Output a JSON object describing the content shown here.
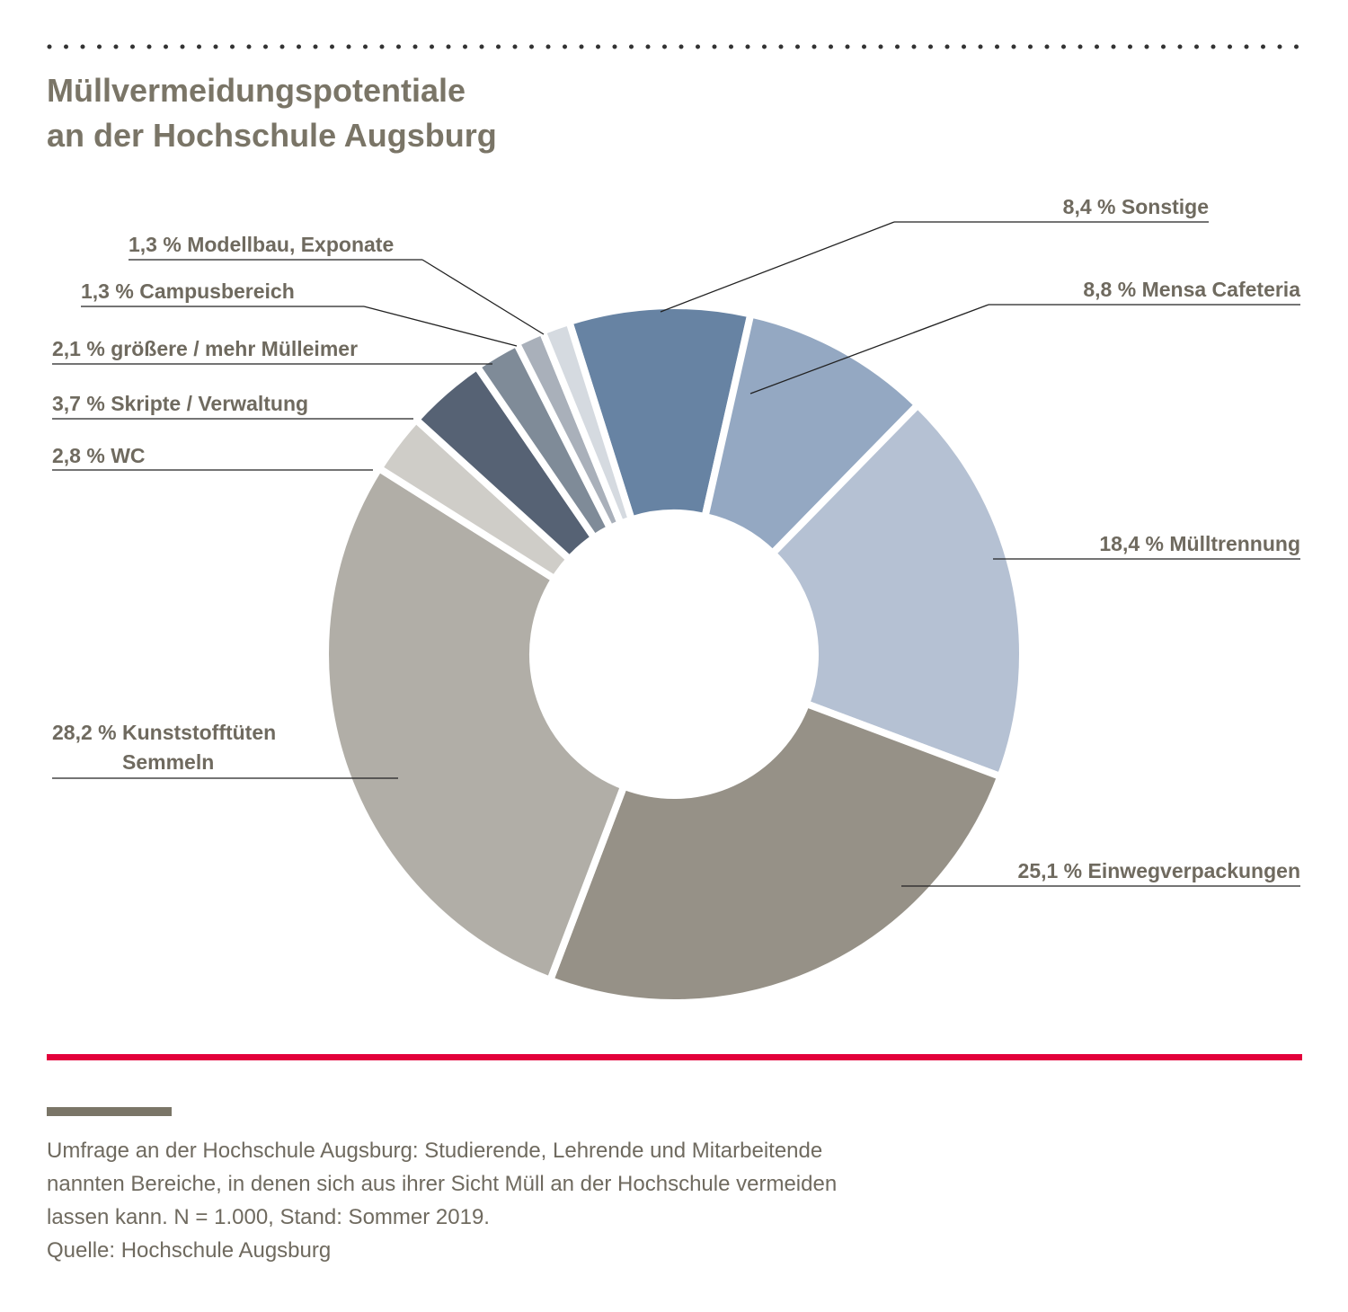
{
  "chart_data": {
    "type": "donut",
    "title": "Müllvermeidungspotentiale\nan der Hochschule Augsburg",
    "categories": [
      "Sonstige",
      "Mensa Cafeteria",
      "Mülltrennung",
      "Einwegverpackungen",
      "Kunststofftüten\nSemmeln",
      "WC",
      "Skripte / Verwaltung",
      "größere / mehr Mülleimer",
      "Campusbereich",
      "Modellbau, Exponate"
    ],
    "values": [
      8.4,
      8.8,
      18.4,
      25.1,
      28.2,
      2.8,
      3.7,
      2.1,
      1.3,
      1.3
    ],
    "value_labels": [
      "8,4 %",
      "8,8 %",
      "18,4 %",
      "25,1 %",
      "28,2 %",
      "2,8 %",
      "3,7 %",
      "2,1 %",
      "1,3 %",
      "1,3 %"
    ],
    "colors": [
      "#6783a3",
      "#94a8c2",
      "#b5c1d3",
      "#969187",
      "#b1aea7",
      "#cfcdc8",
      "#566274",
      "#7f8b98",
      "#a9b0ba",
      "#d5dae0"
    ],
    "notes": [
      "Umfrage an der Hochschule Augsburg: Studierende, Lehrende und Mitarbeitende",
      "nannten Bereiche, in denen sich aus ihrer Sicht Müll an der Hochschule vermeiden",
      "lassen kann. N = 1.000, Stand: Sommer 2019.",
      "Quelle: Hochschule Augsburg"
    ]
  }
}
